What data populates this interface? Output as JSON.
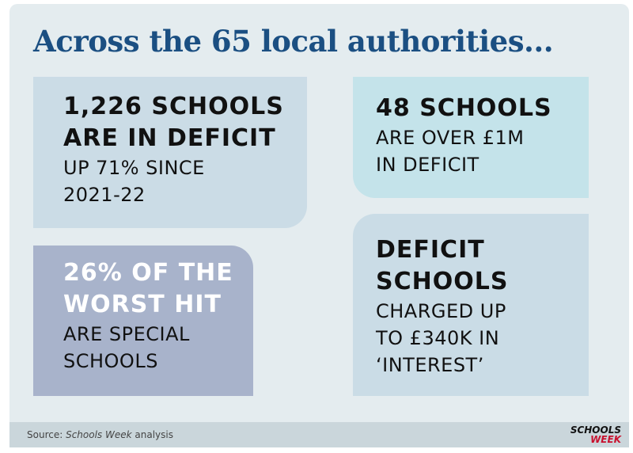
{
  "title": "Across the 65 local authorities...",
  "cards": [
    {
      "headline": [
        "1,226 SCHOOLS",
        "ARE IN DEFICIT"
      ],
      "detail": [
        "UP 71% SINCE",
        "2021-22"
      ]
    },
    {
      "headline": [
        "48 SCHOOLS"
      ],
      "detail": [
        "ARE OVER £1M",
        "IN DEFICIT"
      ]
    },
    {
      "headline": [
        "26% OF THE",
        "WORST HIT"
      ],
      "detail": [
        "ARE SPECIAL",
        "SCHOOLS"
      ]
    },
    {
      "headline": [
        "DEFICIT",
        "SCHOOLS"
      ],
      "detail": [
        "CHARGED UP",
        "TO £340K IN",
        "‘INTEREST’"
      ]
    }
  ],
  "footer": {
    "source_label": "Source:",
    "source_name": "Schools Week",
    "source_rest": "analysis"
  },
  "logo": [
    "SCHOOLS",
    "WEEK"
  ]
}
